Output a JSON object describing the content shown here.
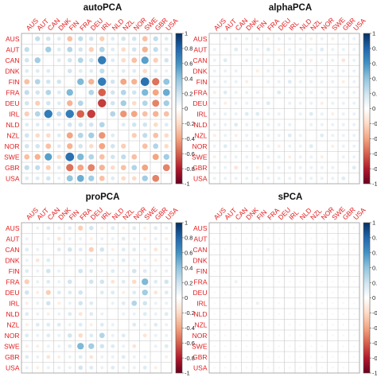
{
  "colors": {
    "label_red": "#e41a1c",
    "colorbar_stops": [
      "#67001f",
      "#b2182b",
      "#d6604d",
      "#f4a582",
      "#fddbc7",
      "#ffffff",
      "#d1e5f0",
      "#92c5de",
      "#4393c3",
      "#2166ac",
      "#053061"
    ]
  },
  "chart_data": [
    {
      "type": "heatmap",
      "title": "autoPCA",
      "countries": [
        "AUS",
        "AUT",
        "CAN",
        "DNK",
        "FIN",
        "FRA",
        "DEU",
        "IRL",
        "NLD",
        "NZL",
        "NOR",
        "SWE",
        "GBR",
        "USA"
      ],
      "colorbar_ticks": [
        "1",
        "0.8",
        "0.6",
        "0.4",
        "0.2",
        "0",
        "-0.2",
        "-0.4",
        "-0.6",
        "-0.8",
        "-1"
      ],
      "value_range": [
        -1,
        1
      ],
      "marker": "circle",
      "matrix": [
        [
          0,
          0.25,
          0.2,
          0.15,
          -0.3,
          0.25,
          0.2,
          -0.25,
          0.15,
          0.2,
          0.2,
          -0.3,
          0.25,
          0.15
        ],
        [
          0.25,
          0,
          0.35,
          0.15,
          0.3,
          0.2,
          -0.25,
          0.3,
          0.15,
          -0.2,
          0.2,
          -0.35,
          0.25,
          0.15
        ],
        [
          0.2,
          0.35,
          0,
          0.15,
          0.2,
          0.3,
          0.2,
          0.7,
          0.15,
          -0.2,
          -0.3,
          0.55,
          -0.25,
          0.2
        ],
        [
          0.15,
          0.15,
          0.15,
          0,
          0.2,
          0.15,
          0.15,
          0.25,
          0.1,
          0.15,
          0.15,
          -0.2,
          0.15,
          0.1
        ],
        [
          -0.3,
          0.3,
          0.2,
          0.2,
          0,
          0.45,
          -0.35,
          0.7,
          0.2,
          -0.4,
          -0.35,
          0.75,
          -0.55,
          0.4
        ],
        [
          0.25,
          0.2,
          0.3,
          0.15,
          0.45,
          0,
          0.3,
          -0.6,
          0.2,
          0.3,
          0.2,
          0.45,
          -0.4,
          0.5
        ],
        [
          0.2,
          -0.25,
          0.2,
          0.15,
          -0.35,
          0.3,
          0,
          -0.7,
          0.2,
          0.35,
          -0.2,
          0.3,
          -0.5,
          0.35
        ],
        [
          -0.25,
          0.3,
          0.7,
          0.25,
          0.7,
          -0.6,
          -0.7,
          0,
          0.3,
          -0.45,
          -0.4,
          -0.3,
          -0.35,
          -0.3
        ],
        [
          0.15,
          0.15,
          0.15,
          0.1,
          0.2,
          0.2,
          0.2,
          0.3,
          0,
          0.15,
          0.2,
          0.2,
          -0.2,
          0.15
        ],
        [
          0.2,
          -0.2,
          -0.2,
          0.15,
          -0.4,
          0.3,
          0.35,
          -0.45,
          0.15,
          0,
          -0.25,
          0.25,
          -0.3,
          -0.2
        ],
        [
          0.2,
          0.2,
          -0.3,
          0.15,
          -0.35,
          0.2,
          -0.2,
          -0.4,
          0.2,
          -0.25,
          0,
          -0.3,
          0.3,
          -0.2
        ],
        [
          -0.3,
          -0.35,
          0.55,
          -0.2,
          0.75,
          0.45,
          0.3,
          -0.3,
          0.2,
          0.25,
          -0.3,
          0,
          -0.4,
          0.35
        ],
        [
          0.25,
          0.25,
          -0.25,
          0.15,
          -0.55,
          -0.4,
          -0.5,
          -0.35,
          -0.2,
          -0.3,
          0.3,
          -0.4,
          0,
          -0.5
        ],
        [
          0.15,
          0.15,
          0.2,
          0.1,
          0.4,
          0.5,
          0.35,
          -0.3,
          0.15,
          -0.2,
          -0.2,
          0.35,
          -0.5,
          0
        ]
      ]
    },
    {
      "type": "heatmap",
      "title": "alphaPCA",
      "countries": [
        "AUS",
        "AUT",
        "CAN",
        "DNK",
        "FIN",
        "FRA",
        "DEU",
        "IRL",
        "NLD",
        "NZL",
        "NOR",
        "SWE",
        "GBR",
        "USA"
      ],
      "colorbar_ticks": [
        "1",
        "0.8",
        "0.6",
        "0.4",
        "0.2",
        "0",
        "-0.2",
        "-0.4",
        "-0.6",
        "-0.8",
        "-1"
      ],
      "value_range": [
        -1,
        1
      ],
      "marker": "circle",
      "matrix": [
        [
          0,
          0.1,
          0.1,
          0.1,
          0.1,
          -0.1,
          0.1,
          0.1,
          0.1,
          -0.1,
          0.1,
          -0.1,
          0.1,
          0.1
        ],
        [
          0.1,
          0,
          0.15,
          0.1,
          0.1,
          0.15,
          -0.1,
          0.1,
          0.1,
          0.1,
          0.15,
          0.1,
          0.1,
          0.1
        ],
        [
          0.1,
          0.15,
          0,
          0.1,
          0.1,
          0.1,
          0.1,
          0.1,
          0.15,
          -0.1,
          0.1,
          0.1,
          -0.15,
          0.1
        ],
        [
          0.1,
          0.1,
          0.1,
          0,
          -0.1,
          0.1,
          0.1,
          0.15,
          0.1,
          0.1,
          0.1,
          0.1,
          0.1,
          0.1
        ],
        [
          0.1,
          0.1,
          0.1,
          -0.1,
          0,
          0.1,
          0.1,
          0.15,
          0.1,
          0.1,
          0.1,
          0.1,
          -0.1,
          0.1
        ],
        [
          -0.1,
          0.15,
          0.1,
          0.1,
          0.1,
          0,
          0.15,
          0.1,
          0.1,
          0.1,
          0.1,
          0.1,
          0.1,
          0.1
        ],
        [
          0.1,
          -0.1,
          0.1,
          0.1,
          0.1,
          0.15,
          0,
          0.1,
          0.1,
          0.1,
          -0.1,
          0.1,
          0.1,
          0.1
        ],
        [
          0.1,
          0.1,
          0.1,
          0.15,
          0.15,
          0.1,
          0.1,
          0,
          0.1,
          0.15,
          0.1,
          -0.1,
          0.1,
          0.1
        ],
        [
          0.1,
          0.1,
          0.15,
          0.1,
          0.1,
          0.1,
          0.1,
          0.1,
          0,
          0.1,
          0.1,
          0.1,
          0.1,
          0.1
        ],
        [
          -0.1,
          0.1,
          -0.1,
          0.1,
          0.1,
          0.1,
          0.1,
          0.15,
          0.1,
          0,
          0.15,
          0.1,
          0.1,
          0.1
        ],
        [
          0.1,
          0.15,
          0.1,
          0.1,
          0.1,
          0.1,
          -0.1,
          0.1,
          0.1,
          0.15,
          0,
          -0.1,
          0.1,
          0.1
        ],
        [
          -0.1,
          0.1,
          0.1,
          0.1,
          0.1,
          0.1,
          0.1,
          -0.1,
          0.1,
          0.1,
          -0.1,
          0,
          0.1,
          0.1
        ],
        [
          0.1,
          0.1,
          -0.15,
          0.1,
          -0.1,
          0.1,
          0.1,
          0.1,
          0.1,
          0.1,
          0.1,
          0.1,
          0,
          0.15
        ],
        [
          0.1,
          0.1,
          0.1,
          0.1,
          0.1,
          0.1,
          0.1,
          0.1,
          0.1,
          0.1,
          0.1,
          0.1,
          0.15,
          0
        ]
      ]
    },
    {
      "type": "heatmap",
      "title": "proPCA",
      "countries": [
        "AUS",
        "AUT",
        "CAN",
        "DNK",
        "FIN",
        "FRA",
        "DEU",
        "IRL",
        "NLD",
        "NZL",
        "NOR",
        "SWE",
        "GBR",
        "USA"
      ],
      "colorbar_ticks": [
        "1",
        "0.8",
        "0.6",
        "0.4",
        "0.2",
        "0",
        "-0.2",
        "-0.4",
        "-0.6",
        "-0.8",
        "-1"
      ],
      "value_range": [
        -1,
        1
      ],
      "marker": "circle",
      "matrix": [
        [
          0,
          0.1,
          0.15,
          0.1,
          0.15,
          -0.25,
          0.2,
          -0.1,
          0.15,
          -0.1,
          0.15,
          -0.1,
          0.15,
          0.1
        ],
        [
          0.1,
          0,
          0.1,
          -0.15,
          0.1,
          0.1,
          -0.1,
          0.1,
          0.1,
          0.15,
          0.1,
          -0.1,
          0.1,
          -0.1
        ],
        [
          0.15,
          0.1,
          0,
          0.15,
          0.2,
          0.15,
          -0.25,
          0.2,
          -0.1,
          0.15,
          0.15,
          0.1,
          -0.15,
          0.1
        ],
        [
          0.1,
          -0.15,
          0.15,
          0,
          0.1,
          0.1,
          0.15,
          -0.1,
          0.1,
          0.15,
          0.1,
          0.1,
          -0.1,
          0.1
        ],
        [
          0.15,
          0.1,
          0.2,
          0.1,
          0,
          0.2,
          0.15,
          0.1,
          0.15,
          0.1,
          0.2,
          0.15,
          0.1,
          0.1
        ],
        [
          -0.25,
          0.1,
          0.15,
          0.1,
          0.2,
          0,
          0.2,
          0.2,
          -0.15,
          0.15,
          -0.2,
          0.45,
          0.15,
          0.2
        ],
        [
          0.2,
          -0.1,
          -0.25,
          0.15,
          0.15,
          0.2,
          0,
          0.15,
          0.15,
          -0.1,
          0.15,
          0.35,
          -0.15,
          0.15
        ],
        [
          -0.1,
          0.1,
          0.2,
          -0.1,
          0.1,
          0.2,
          0.15,
          0,
          0.1,
          0.15,
          0.3,
          0.2,
          0.1,
          0.1
        ],
        [
          0.15,
          0.1,
          -0.1,
          0.1,
          0.15,
          -0.15,
          0.15,
          0.1,
          0,
          0.1,
          0.1,
          0.15,
          0.1,
          0.15
        ],
        [
          -0.1,
          0.15,
          0.15,
          0.15,
          0.1,
          0.15,
          -0.1,
          0.15,
          0.1,
          0,
          0.15,
          0.1,
          0.15,
          0.1
        ],
        [
          0.15,
          0.1,
          0.15,
          0.1,
          0.2,
          -0.2,
          0.15,
          0.3,
          0.1,
          0.15,
          0,
          -0.15,
          0.1,
          0.1
        ],
        [
          -0.1,
          -0.1,
          0.1,
          0.1,
          0.15,
          0.45,
          0.35,
          0.2,
          0.15,
          0.1,
          -0.15,
          0,
          0.1,
          0.15
        ],
        [
          0.15,
          0.1,
          -0.15,
          -0.1,
          0.1,
          0.15,
          -0.15,
          0.1,
          0.1,
          0.15,
          0.1,
          0.1,
          0,
          -0.1
        ],
        [
          0.1,
          -0.1,
          0.1,
          0.1,
          0.1,
          0.2,
          0.15,
          0.1,
          0.15,
          0.1,
          0.1,
          0.15,
          -0.1,
          0
        ]
      ]
    },
    {
      "type": "heatmap",
      "title": "sPCA",
      "countries": [
        "AUS",
        "AUT",
        "CAN",
        "DNK",
        "FIN",
        "FRA",
        "DEU",
        "IRL",
        "NLD",
        "NZL",
        "NOR",
        "SWE",
        "GBR",
        "USA"
      ],
      "colorbar_ticks": [
        "1",
        "0.8",
        "0.6",
        "0.4",
        "0.2",
        "0",
        "-0.2",
        "-0.4",
        "-0.6",
        "-0.8",
        "-1"
      ],
      "value_range": [
        -1,
        1
      ],
      "marker": "circle",
      "matrix": [
        [
          0,
          0.05,
          0.05,
          0.05,
          0.05,
          -0.05,
          0.05,
          0.05,
          -0.05,
          0.05,
          0.05,
          0.05,
          -0.05,
          0.05
        ],
        [
          0.05,
          0,
          0.05,
          -0.05,
          0.05,
          0.05,
          0.05,
          0.05,
          0.05,
          -0.05,
          0.05,
          0.05,
          0.05,
          0.05
        ],
        [
          0.05,
          0.05,
          0,
          0.05,
          0.05,
          0.1,
          0.05,
          -0.05,
          0.05,
          0.05,
          0.05,
          0.05,
          0.05,
          0.05
        ],
        [
          0.05,
          -0.05,
          0.05,
          0,
          0.05,
          0.05,
          -0.05,
          0.05,
          0.05,
          0.05,
          0.05,
          -0.05,
          0.05,
          0.05
        ],
        [
          0.05,
          0.05,
          0.05,
          0.05,
          0,
          0.05,
          0.05,
          0.1,
          0.05,
          0.05,
          0.05,
          0.05,
          0.05,
          -0.05
        ],
        [
          -0.05,
          0.05,
          0.1,
          0.05,
          0.05,
          0,
          0.05,
          0.05,
          0.05,
          0.05,
          0.05,
          0.05,
          0.05,
          0.05
        ],
        [
          0.05,
          0.05,
          0.05,
          -0.05,
          0.05,
          0.05,
          0,
          0.05,
          0.05,
          0.05,
          0.05,
          0.05,
          0.05,
          0.05
        ],
        [
          0.05,
          0.05,
          -0.05,
          0.05,
          0.1,
          0.05,
          0.05,
          0,
          0.05,
          0.05,
          0.05,
          -0.05,
          0.05,
          0.05
        ],
        [
          -0.05,
          0.05,
          0.05,
          0.05,
          0.05,
          0.05,
          0.05,
          0.05,
          0,
          0.05,
          0.05,
          0.05,
          0.05,
          0.05
        ],
        [
          0.05,
          -0.05,
          0.05,
          0.05,
          0.05,
          0.05,
          0.05,
          0.05,
          0.05,
          0,
          0.05,
          0.05,
          0.05,
          0.05
        ],
        [
          0.05,
          0.05,
          0.05,
          0.05,
          0.05,
          0.05,
          0.05,
          0.05,
          0.05,
          0.05,
          0,
          0.05,
          0.05,
          0.05
        ],
        [
          0.05,
          0.05,
          0.05,
          -0.05,
          0.05,
          0.05,
          0.05,
          -0.05,
          0.05,
          0.05,
          0.05,
          0,
          0.05,
          0.05
        ],
        [
          -0.05,
          0.05,
          0.05,
          0.05,
          0.05,
          0.05,
          0.05,
          0.05,
          0.05,
          0.05,
          0.05,
          0.05,
          0,
          0.05
        ],
        [
          0.05,
          0.05,
          0.05,
          0.05,
          -0.05,
          0.05,
          0.05,
          0.05,
          0.05,
          0.05,
          0.05,
          0.05,
          0.05,
          0
        ]
      ]
    }
  ]
}
